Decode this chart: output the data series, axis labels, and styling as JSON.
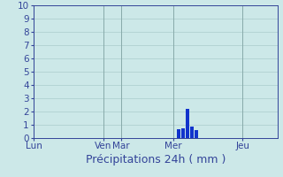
{
  "title": "",
  "xlabel": "Précipitations 24h ( mm )",
  "ylabel": "",
  "background_color": "#cce8e8",
  "bar_color": "#1133cc",
  "grid_color": "#aacccc",
  "axis_color": "#334499",
  "tick_label_color": "#334499",
  "xlabel_color": "#334499",
  "ylim": [
    0,
    10
  ],
  "yticks": [
    0,
    1,
    2,
    3,
    4,
    5,
    6,
    7,
    8,
    9,
    10
  ],
  "day_labels": [
    "Lun",
    "Ven",
    "Mar",
    "Mer",
    "Jeu"
  ],
  "day_positions": [
    0.0,
    0.286,
    0.357,
    0.571,
    0.857
  ],
  "total_bars": 1.0,
  "bar_positions": [
    0.595,
    0.613,
    0.631,
    0.649,
    0.667
  ],
  "bar_heights": [
    0.65,
    0.72,
    2.2,
    0.85,
    0.6
  ],
  "bar_width": 0.015,
  "xlabel_fontsize": 9,
  "tick_fontsize": 7.5
}
